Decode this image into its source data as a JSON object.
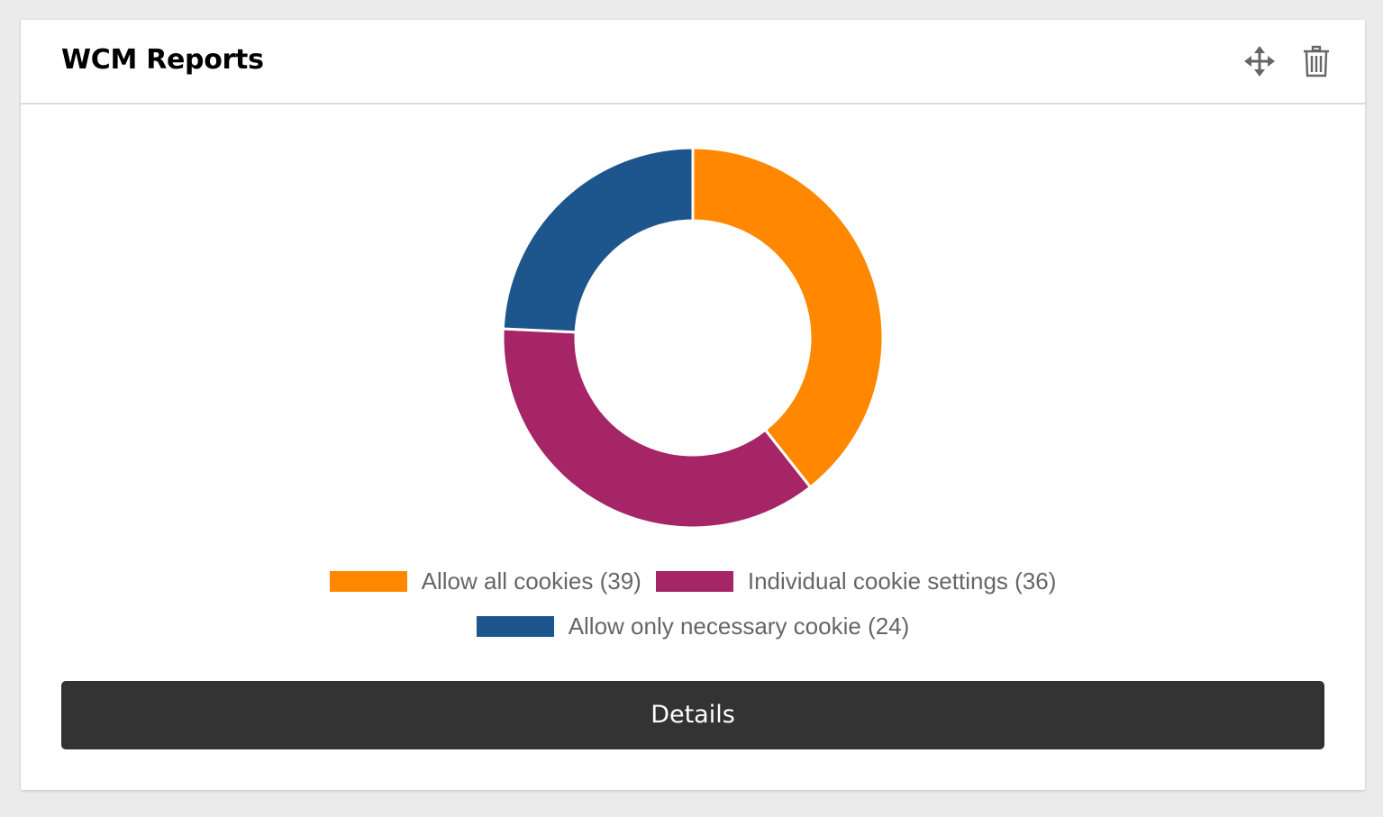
{
  "widget": {
    "title": "WCM Reports",
    "move_icon": "move-arrows-icon",
    "delete_icon": "trash-icon",
    "details_label": "Details"
  },
  "colors": {
    "allow_all": "#ff8800",
    "individual": "#a52567",
    "necessary": "#1c568d"
  },
  "chart_data": {
    "type": "pie",
    "variant": "doughnut",
    "legend_position": "bottom",
    "series": [
      {
        "name": "Allow all cookies",
        "value": 39,
        "color": "#ff8800",
        "label": "Allow all cookies (39)"
      },
      {
        "name": "Individual cookie settings",
        "value": 36,
        "color": "#a52567",
        "label": "Individual cookie settings (36)"
      },
      {
        "name": "Allow only necessary cookie",
        "value": 24,
        "color": "#1c568d",
        "label": "Allow only necessary cookie (24)"
      }
    ]
  }
}
